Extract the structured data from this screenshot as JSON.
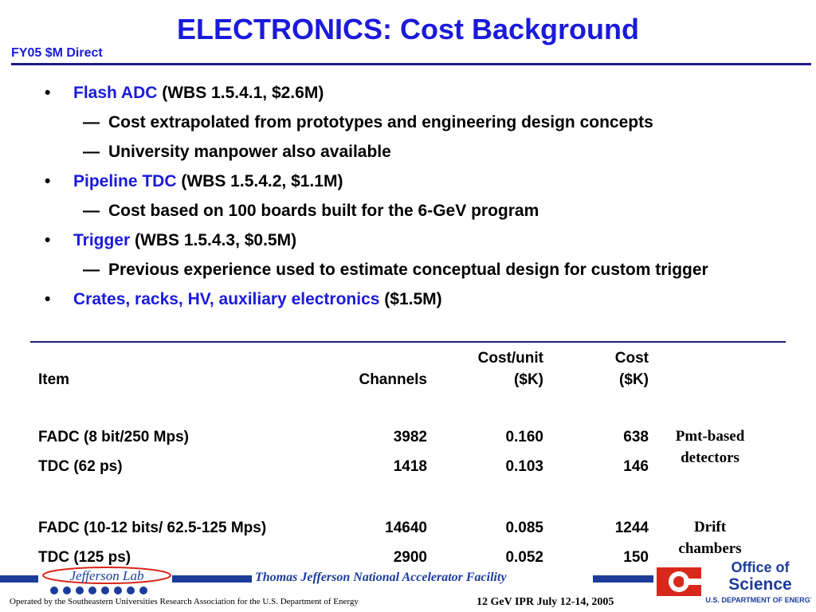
{
  "header": {
    "title": "ELECTRONICS: Cost Background",
    "subtitle": "FY05 $M Direct"
  },
  "bullets": [
    {
      "highlight": "Flash ADC",
      "rest": " (WBS 1.5.4.1, $2.6M)",
      "subs": [
        "Cost extrapolated from prototypes and engineering design concepts",
        "University manpower also available"
      ]
    },
    {
      "highlight": "Pipeline TDC",
      "rest": " (WBS 1.5.4.2, $1.1M)",
      "subs": [
        "Cost based on 100 boards built for the 6-GeV program"
      ]
    },
    {
      "highlight": "Trigger",
      "rest": " (WBS 1.5.4.3, $0.5M)",
      "subs": [
        "Previous experience used to estimate conceptual design for custom trigger"
      ]
    },
    {
      "highlight": "Crates, racks, HV, auxiliary electronics",
      "rest": " ($1.5M)",
      "subs": []
    }
  ],
  "bullet_symbol": "•",
  "dash_symbol": "—",
  "table": {
    "headers": {
      "item": "Item",
      "channels": "Channels",
      "cost_unit_top": "Cost/unit",
      "cost_unit_bottom": "($K)",
      "cost_top": "Cost",
      "cost_bottom": "($K)"
    },
    "rows": [
      {
        "item": "FADC (8 bit/250 Mps)",
        "channels": "3982",
        "cost_unit": "0.160",
        "cost": "638"
      },
      {
        "item": "TDC (62 ps)",
        "channels": "1418",
        "cost_unit": "0.103",
        "cost": "146"
      },
      {
        "item": "FADC (10-12 bits/ 62.5-125 Mps)",
        "channels": "14640",
        "cost_unit": "0.085",
        "cost": "1244"
      },
      {
        "item": "TDC (125 ps)",
        "channels": "2900",
        "cost_unit": "0.052",
        "cost": "150"
      }
    ],
    "group_labels": [
      {
        "line1": "Pmt-based",
        "line2": "detectors"
      },
      {
        "line1": "Drift",
        "line2": "chambers"
      }
    ]
  },
  "footer": {
    "facility": "Thomas Jefferson National Accelerator Facility",
    "operated": "Operated by the Southeastern Universities Research Association for the U.S. Department of  Energy",
    "conference": "12 GeV IPR July 12-14, 2005",
    "jlab_logo_text": "Jefferson Lab",
    "doe_logo_line1": "Office of",
    "doe_logo_line2": "Science",
    "doe_logo_line3": "U.S. DEPARTMENT OF ENERGY"
  },
  "colors": {
    "accent_blue": "#1a1adc",
    "rule_navy": "#1c1c84",
    "footer_blue": "#1c3c9c",
    "doe_red": "#d8281c"
  }
}
